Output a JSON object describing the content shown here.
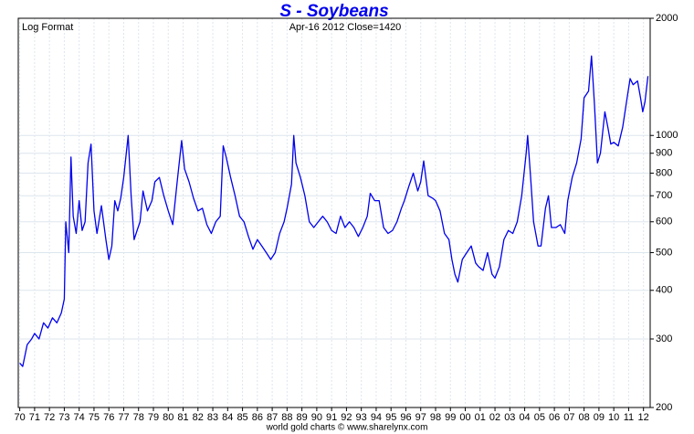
{
  "chart_data": {
    "type": "line",
    "title": "S  -  Soybeans",
    "annotations": [
      "Log Format",
      "Apr-16  2012   Close=1420"
    ],
    "source": "world gold charts © www.sharelynx.com",
    "log_scale": true,
    "grid": true,
    "color": "#0000ee",
    "xlim": [
      1969.9,
      2012.45
    ],
    "ylim": [
      200,
      2000
    ],
    "yticks": [
      200,
      300,
      400,
      500,
      600,
      700,
      800,
      900,
      1000,
      2000
    ],
    "xticks": [
      {
        "value": 1970,
        "label": "70"
      },
      {
        "value": 1971,
        "label": "71"
      },
      {
        "value": 1972,
        "label": "72"
      },
      {
        "value": 1973,
        "label": "73"
      },
      {
        "value": 1974,
        "label": "74"
      },
      {
        "value": 1975,
        "label": "75"
      },
      {
        "value": 1976,
        "label": "76"
      },
      {
        "value": 1977,
        "label": "77"
      },
      {
        "value": 1978,
        "label": "78"
      },
      {
        "value": 1979,
        "label": "79"
      },
      {
        "value": 1980,
        "label": "80"
      },
      {
        "value": 1981,
        "label": "81"
      },
      {
        "value": 1982,
        "label": "82"
      },
      {
        "value": 1983,
        "label": "83"
      },
      {
        "value": 1984,
        "label": "84"
      },
      {
        "value": 1985,
        "label": "85"
      },
      {
        "value": 1986,
        "label": "86"
      },
      {
        "value": 1987,
        "label": "87"
      },
      {
        "value": 1988,
        "label": "88"
      },
      {
        "value": 1989,
        "label": "89"
      },
      {
        "value": 1990,
        "label": "90"
      },
      {
        "value": 1991,
        "label": "91"
      },
      {
        "value": 1992,
        "label": "92"
      },
      {
        "value": 1993,
        "label": "93"
      },
      {
        "value": 1994,
        "label": "94"
      },
      {
        "value": 1995,
        "label": "95"
      },
      {
        "value": 1996,
        "label": "96"
      },
      {
        "value": 1997,
        "label": "97"
      },
      {
        "value": 1998,
        "label": "98"
      },
      {
        "value": 1999,
        "label": "99"
      },
      {
        "value": 2000,
        "label": "00"
      },
      {
        "value": 2001,
        "label": "01"
      },
      {
        "value": 2002,
        "label": "02"
      },
      {
        "value": 2003,
        "label": "03"
      },
      {
        "value": 2004,
        "label": "04"
      },
      {
        "value": 2005,
        "label": "05"
      },
      {
        "value": 2006,
        "label": "06"
      },
      {
        "value": 2007,
        "label": "07"
      },
      {
        "value": 2008,
        "label": "08"
      },
      {
        "value": 2009,
        "label": "09"
      },
      {
        "value": 2010,
        "label": "10"
      },
      {
        "value": 2011,
        "label": "11"
      },
      {
        "value": 2012,
        "label": "12"
      }
    ],
    "x": [
      1970.0,
      1970.2,
      1970.5,
      1970.8,
      1971.0,
      1971.3,
      1971.6,
      1971.9,
      1972.2,
      1972.5,
      1972.8,
      1973.0,
      1973.1,
      1973.3,
      1973.45,
      1973.6,
      1973.8,
      1974.0,
      1974.2,
      1974.4,
      1974.6,
      1974.8,
      1975.0,
      1975.2,
      1975.5,
      1975.8,
      1976.0,
      1976.2,
      1976.4,
      1976.6,
      1976.8,
      1977.0,
      1977.3,
      1977.5,
      1977.7,
      1977.9,
      1978.1,
      1978.3,
      1978.6,
      1978.9,
      1979.1,
      1979.4,
      1979.7,
      1980.0,
      1980.3,
      1980.6,
      1980.9,
      1981.1,
      1981.4,
      1981.7,
      1982.0,
      1982.3,
      1982.6,
      1982.9,
      1983.2,
      1983.5,
      1983.7,
      1983.9,
      1984.2,
      1984.5,
      1984.8,
      1985.1,
      1985.4,
      1985.7,
      1986.0,
      1986.3,
      1986.6,
      1986.9,
      1987.2,
      1987.5,
      1987.8,
      1988.0,
      1988.3,
      1988.45,
      1988.6,
      1988.9,
      1989.2,
      1989.5,
      1989.8,
      1990.1,
      1990.4,
      1990.7,
      1991.0,
      1991.3,
      1991.6,
      1991.9,
      1992.2,
      1992.5,
      1992.8,
      1993.1,
      1993.4,
      1993.6,
      1993.9,
      1994.2,
      1994.5,
      1994.8,
      1995.1,
      1995.4,
      1995.7,
      1995.9,
      1996.2,
      1996.5,
      1996.8,
      1997.0,
      1997.2,
      1997.5,
      1997.8,
      1998.0,
      1998.3,
      1998.6,
      1998.9,
      1999.1,
      1999.3,
      1999.5,
      1999.8,
      2000.1,
      2000.4,
      2000.7,
      2000.9,
      2001.2,
      2001.5,
      2001.8,
      2002.0,
      2002.3,
      2002.6,
      2002.9,
      2003.2,
      2003.5,
      2003.8,
      2004.1,
      2004.2,
      2004.4,
      2004.6,
      2004.9,
      2005.1,
      2005.4,
      2005.6,
      2005.8,
      2006.1,
      2006.4,
      2006.7,
      2006.9,
      2007.2,
      2007.5,
      2007.8,
      2008.0,
      2008.3,
      2008.5,
      2008.7,
      2008.9,
      2009.1,
      2009.4,
      2009.6,
      2009.8,
      2010.0,
      2010.3,
      2010.6,
      2010.9,
      2011.1,
      2011.3,
      2011.6,
      2011.8,
      2011.95,
      2012.1,
      2012.3
    ],
    "values": [
      260,
      255,
      290,
      300,
      310,
      300,
      330,
      320,
      340,
      330,
      350,
      380,
      600,
      500,
      880,
      620,
      560,
      680,
      570,
      600,
      850,
      950,
      640,
      560,
      660,
      540,
      480,
      520,
      680,
      640,
      690,
      780,
      1000,
      700,
      540,
      570,
      600,
      720,
      640,
      680,
      760,
      780,
      700,
      640,
      590,
      760,
      970,
      820,
      760,
      690,
      640,
      650,
      590,
      560,
      600,
      620,
      940,
      880,
      780,
      700,
      620,
      600,
      550,
      510,
      540,
      520,
      500,
      480,
      500,
      560,
      600,
      650,
      750,
      1000,
      850,
      780,
      700,
      600,
      580,
      600,
      620,
      600,
      570,
      560,
      620,
      580,
      600,
      580,
      550,
      580,
      620,
      710,
      680,
      680,
      580,
      560,
      570,
      600,
      650,
      680,
      740,
      800,
      720,
      760,
      860,
      700,
      690,
      680,
      640,
      560,
      540,
      480,
      440,
      420,
      480,
      500,
      520,
      470,
      460,
      450,
      500,
      440,
      430,
      460,
      540,
      570,
      560,
      600,
      700,
      900,
      1000,
      780,
      600,
      520,
      520,
      650,
      700,
      580,
      580,
      590,
      560,
      680,
      780,
      850,
      980,
      1250,
      1300,
      1600,
      1200,
      850,
      900,
      1150,
      1050,
      950,
      960,
      940,
      1050,
      1250,
      1400,
      1350,
      1380,
      1250,
      1150,
      1220,
      1420
    ]
  }
}
